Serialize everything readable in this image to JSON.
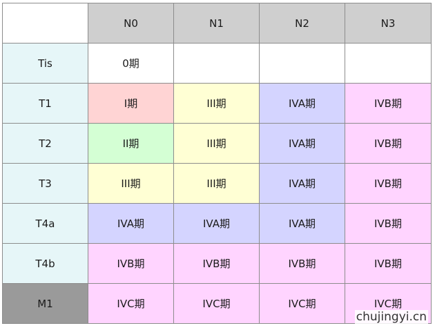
{
  "columns": [
    "",
    "N0",
    "N1",
    "N2",
    "N3"
  ],
  "rows": [
    {
      "label": "Tis",
      "cells": [
        "0期",
        "",
        "",
        ""
      ]
    },
    {
      "label": "T1",
      "cells": [
        "I期",
        "III期",
        "IVA期",
        "IVB期"
      ]
    },
    {
      "label": "T2",
      "cells": [
        "II期",
        "III期",
        "IVA期",
        "IVB期"
      ]
    },
    {
      "label": "T3",
      "cells": [
        "III期",
        "III期",
        "IVA期",
        "IVB期"
      ]
    },
    {
      "label": "T4a",
      "cells": [
        "IVA期",
        "IVA期",
        "IVA期",
        "IVB期"
      ]
    },
    {
      "label": "T4b",
      "cells": [
        "IVB期",
        "IVB期",
        "IVB期",
        "IVB期"
      ]
    },
    {
      "label": "M1",
      "cells": [
        "IVC期",
        "IVC期",
        "IVC期",
        "IVC期"
      ]
    }
  ],
  "stage_colors": {
    "0期": "#ffffff",
    "I期": "#ffd4d4",
    "II期": "#d4ffd4",
    "III期": "#ffffd4",
    "IVA期": "#d4d4ff",
    "IVB期": "#ffd4ff",
    "IVC期": "#ffd4ff",
    "": "#ffffff"
  },
  "watermark": "chujingyi.cn"
}
